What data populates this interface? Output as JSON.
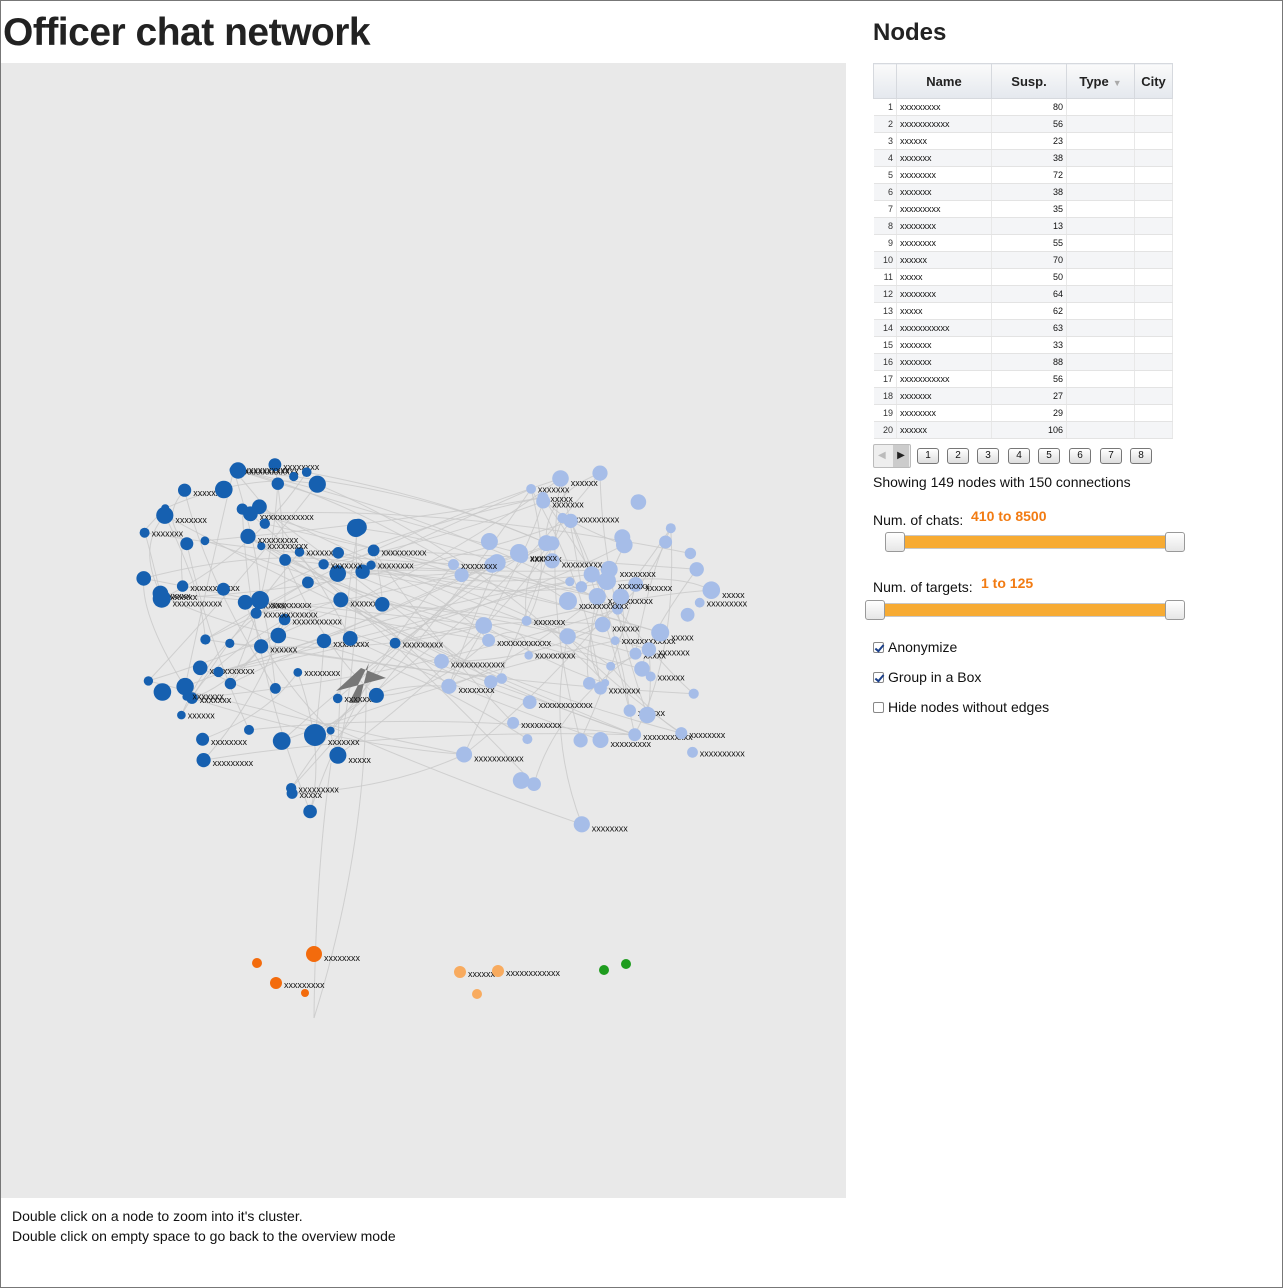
{
  "title": "Officer chat network",
  "help_lines": [
    "Double click on a node to zoom into it's cluster.",
    "Double click on empty space to go back to the overview mode"
  ],
  "sidebar": {
    "title": "Nodes",
    "table": {
      "headers": [
        "Name",
        "Susp.",
        "Type",
        "City"
      ],
      "rows": [
        {
          "i": "1",
          "name": "xxxxxxxxx",
          "susp": "80"
        },
        {
          "i": "2",
          "name": "xxxxxxxxxxx",
          "susp": "56"
        },
        {
          "i": "3",
          "name": "xxxxxx",
          "susp": "23"
        },
        {
          "i": "4",
          "name": "xxxxxxx",
          "susp": "38"
        },
        {
          "i": "5",
          "name": "xxxxxxxx",
          "susp": "72"
        },
        {
          "i": "6",
          "name": "xxxxxxx",
          "susp": "38"
        },
        {
          "i": "7",
          "name": "xxxxxxxxx",
          "susp": "35"
        },
        {
          "i": "8",
          "name": "xxxxxxxx",
          "susp": "13"
        },
        {
          "i": "9",
          "name": "xxxxxxxx",
          "susp": "55"
        },
        {
          "i": "10",
          "name": "xxxxxx",
          "susp": "70"
        },
        {
          "i": "11",
          "name": "xxxxx",
          "susp": "50"
        },
        {
          "i": "12",
          "name": "xxxxxxxx",
          "susp": "64"
        },
        {
          "i": "13",
          "name": "xxxxx",
          "susp": "62"
        },
        {
          "i": "14",
          "name": "xxxxxxxxxxx",
          "susp": "63"
        },
        {
          "i": "15",
          "name": "xxxxxxx",
          "susp": "33"
        },
        {
          "i": "16",
          "name": "xxxxxxx",
          "susp": "88"
        },
        {
          "i": "17",
          "name": "xxxxxxxxxxx",
          "susp": "56"
        },
        {
          "i": "18",
          "name": "xxxxxxx",
          "susp": "27"
        },
        {
          "i": "19",
          "name": "xxxxxxxx",
          "susp": "29"
        },
        {
          "i": "20",
          "name": "xxxxxx",
          "susp": "106"
        }
      ]
    },
    "pager": {
      "prev_icon": "◀",
      "next_icon": "▶",
      "pages": [
        "1",
        "2",
        "3",
        "4",
        "5",
        "6",
        "7",
        "8"
      ]
    },
    "summary": "Showing 149 nodes with 150 connections",
    "sliders": {
      "chats": {
        "label": "Num. of chats:",
        "value": "410 to 8500",
        "min_fraction": 0.04,
        "max_fraction": 1.0
      },
      "targets": {
        "label": "Num. of targets:",
        "value": "1 to 125",
        "min_fraction": 0.0,
        "max_fraction": 1.0
      }
    },
    "options": [
      {
        "label": "Anonymize",
        "checked": true
      },
      {
        "label": "Group in a Box",
        "checked": true
      },
      {
        "label": "Hide nodes without edges",
        "checked": false
      }
    ]
  },
  "colors": {
    "cluster_dark_blue": "#1660b0",
    "cluster_light_blue": "#a6bde8",
    "cluster_orange": "#f36b0c",
    "cluster_light_orange": "#f8ab5f",
    "cluster_green": "#1e9c1e",
    "edge": "#c8c8c8",
    "slider_fill": "#f7ab33",
    "slider_value": "#f27b12"
  },
  "graph_labels": [
    "xxxxxxxxx",
    "xxxxxxx",
    "xxxxxxxx",
    "xxxxxxxxxx",
    "xxxxxx",
    "xxxxxxxxxxxx",
    "xxxxx",
    "xxxxxxxxxxx",
    "xxxxxxxx",
    "xxxxxxx",
    "xxxxxxxxx",
    "xxxxxx",
    "xxxxxxxxxxx",
    "xxxxxxx",
    "xxxxxxxx",
    "xxxxxxxxx",
    "xxxxxx",
    "xxxxxxxxxxxx",
    "xxxxx",
    "xxxxxxx"
  ]
}
